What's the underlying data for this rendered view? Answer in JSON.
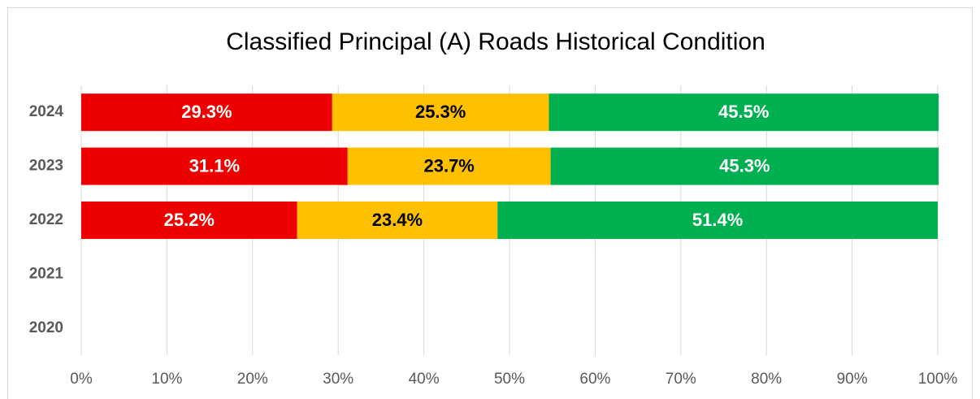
{
  "chart_data": {
    "type": "stacked_bar_horizontal",
    "title": "Classified Principal (A) Roads Historical Condition",
    "categories": [
      "2024",
      "2023",
      "2022",
      "2021",
      "2020"
    ],
    "series": [
      {
        "color": "#ee0000",
        "label_color": "#ffffff",
        "values": [
          29.3,
          31.1,
          25.2,
          null,
          null
        ],
        "value_labels": [
          "29.3%",
          "31.1%",
          "25.2%",
          null,
          null
        ]
      },
      {
        "color": "#ffc000",
        "label_color": "#000000",
        "values": [
          25.3,
          23.7,
          23.4,
          null,
          null
        ],
        "value_labels": [
          "25.3%",
          "23.7%",
          "23.4%",
          null,
          null
        ]
      },
      {
        "color": "#00b050",
        "label_color": "#ffffff",
        "values": [
          45.5,
          45.3,
          51.4,
          null,
          null
        ],
        "value_labels": [
          "45.5%",
          "45.3%",
          "51.4%",
          null,
          null
        ]
      }
    ],
    "xlim": [
      0,
      100
    ],
    "xticks": [
      {
        "value": 0,
        "label": "0%"
      },
      {
        "value": 10,
        "label": "10%"
      },
      {
        "value": 20,
        "label": "20%"
      },
      {
        "value": 30,
        "label": "30%"
      },
      {
        "value": 40,
        "label": "40%"
      },
      {
        "value": 50,
        "label": "50%"
      },
      {
        "value": 60,
        "label": "60%"
      },
      {
        "value": 70,
        "label": "70%"
      },
      {
        "value": 80,
        "label": "80%"
      },
      {
        "value": 90,
        "label": "90%"
      },
      {
        "value": 100,
        "label": "100%"
      }
    ],
    "grid": true
  }
}
